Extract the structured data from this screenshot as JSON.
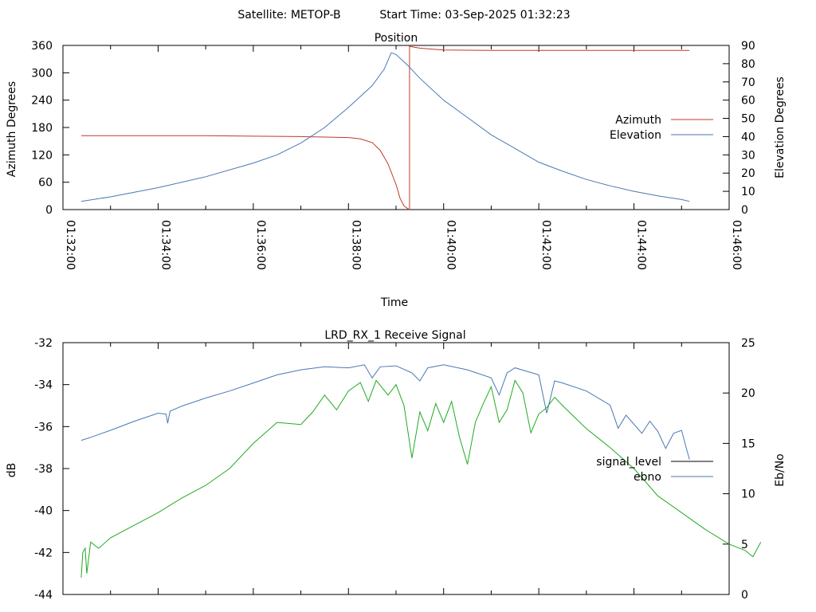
{
  "header": {
    "satellite": "Satellite: METOP-B",
    "start_time": "Start Time: 03-Sep-2025 01:32:23"
  },
  "chart_data": [
    {
      "type": "line",
      "title": "Position",
      "xlabel": "Time",
      "ylabel": "Azimuth Degrees",
      "y2label": "Elevation Degrees",
      "xlim": [
        "01:32:00",
        "01:46:00"
      ],
      "x_ticks": [
        "01:32:00",
        "01:34:00",
        "01:36:00",
        "01:38:00",
        "01:40:00",
        "01:42:00",
        "01:44:00",
        "01:46:00"
      ],
      "ylim": [
        0,
        360
      ],
      "y_ticks": [
        0,
        60,
        120,
        180,
        240,
        300,
        360
      ],
      "y2lim": [
        0,
        90
      ],
      "y2_ticks": [
        0,
        10,
        20,
        30,
        40,
        50,
        60,
        70,
        80,
        90
      ],
      "grid": false,
      "legend_position": "right",
      "series": [
        {
          "name": "Azimuth",
          "axis": "left",
          "color": "#c0392b",
          "points": [
            [
              "01:32:23",
              162
            ],
            [
              "01:33:00",
              162
            ],
            [
              "01:34:00",
              162
            ],
            [
              "01:35:00",
              162
            ],
            [
              "01:36:00",
              161
            ],
            [
              "01:37:00",
              160
            ],
            [
              "01:37:30",
              159
            ],
            [
              "01:38:00",
              158
            ],
            [
              "01:38:15",
              155
            ],
            [
              "01:38:30",
              147
            ],
            [
              "01:38:40",
              130
            ],
            [
              "01:38:50",
              100
            ],
            [
              "01:39:00",
              55
            ],
            [
              "01:39:05",
              25
            ],
            [
              "01:39:10",
              8
            ],
            [
              "01:39:15",
              2
            ],
            [
              "01:39:17",
              0
            ],
            [
              "01:39:17",
              358
            ],
            [
              "01:39:20",
              357
            ],
            [
              "01:39:30",
              354
            ],
            [
              "01:39:45",
              352
            ],
            [
              "01:40:00",
              350
            ],
            [
              "01:41:00",
              349
            ],
            [
              "01:42:00",
              349
            ],
            [
              "01:43:00",
              349
            ],
            [
              "01:44:00",
              349
            ],
            [
              "01:45:00",
              349
            ],
            [
              "01:45:10",
              349
            ]
          ]
        },
        {
          "name": "Elevation",
          "axis": "right",
          "color": "#4a77b4",
          "points": [
            [
              "01:32:23",
              4.5
            ],
            [
              "01:33:00",
              7
            ],
            [
              "01:34:00",
              12
            ],
            [
              "01:35:00",
              18
            ],
            [
              "01:36:00",
              25.5
            ],
            [
              "01:36:30",
              30
            ],
            [
              "01:37:00",
              36.5
            ],
            [
              "01:37:30",
              45
            ],
            [
              "01:38:00",
              56
            ],
            [
              "01:38:30",
              68
            ],
            [
              "01:38:45",
              77
            ],
            [
              "01:38:54",
              86
            ],
            [
              "01:39:00",
              85
            ],
            [
              "01:39:15",
              79
            ],
            [
              "01:39:30",
              72
            ],
            [
              "01:40:00",
              60
            ],
            [
              "01:40:30",
              50.5
            ],
            [
              "01:41:00",
              41
            ],
            [
              "01:41:30",
              33.5
            ],
            [
              "01:42:00",
              26
            ],
            [
              "01:42:30",
              21
            ],
            [
              "01:43:00",
              16.5
            ],
            [
              "01:43:30",
              13
            ],
            [
              "01:44:00",
              10
            ],
            [
              "01:44:30",
              7.5
            ],
            [
              "01:45:00",
              5.5
            ],
            [
              "01:45:10",
              4.5
            ]
          ]
        }
      ]
    },
    {
      "type": "line",
      "title": "LRD_RX_1 Receive Signal",
      "xlabel": "",
      "ylabel": "dB",
      "y2label": "Eb/No",
      "xlim": [
        "01:32:00",
        "01:46:00"
      ],
      "ylim": [
        -44,
        -32
      ],
      "y_ticks": [
        -44,
        -42,
        -40,
        -38,
        -36,
        -34,
        -32
      ],
      "y2lim": [
        0,
        25
      ],
      "y2_ticks": [
        0,
        5,
        10,
        15,
        20,
        25
      ],
      "grid": false,
      "legend_position": "right",
      "series": [
        {
          "name": "signal_level",
          "axis": "left",
          "color": "#000000",
          "points": []
        },
        {
          "name": "ebno",
          "axis": "right",
          "color": "#4a77b4",
          "points": [
            [
              "01:32:23",
              15.3
            ],
            [
              "01:32:35",
              15.6
            ],
            [
              "01:33:00",
              16.3
            ],
            [
              "01:33:30",
              17.2
            ],
            [
              "01:34:00",
              18.0
            ],
            [
              "01:34:10",
              17.9
            ],
            [
              "01:34:12",
              17.0
            ],
            [
              "01:34:15",
              18.2
            ],
            [
              "01:34:30",
              18.7
            ],
            [
              "01:35:00",
              19.5
            ],
            [
              "01:35:30",
              20.2
            ],
            [
              "01:36:00",
              21.0
            ],
            [
              "01:36:30",
              21.8
            ],
            [
              "01:37:00",
              22.3
            ],
            [
              "01:37:30",
              22.6
            ],
            [
              "01:38:00",
              22.5
            ],
            [
              "01:38:20",
              22.8
            ],
            [
              "01:38:30",
              21.5
            ],
            [
              "01:38:40",
              22.6
            ],
            [
              "01:39:00",
              22.7
            ],
            [
              "01:39:20",
              22.0
            ],
            [
              "01:39:30",
              21.2
            ],
            [
              "01:39:40",
              22.5
            ],
            [
              "01:40:00",
              22.8
            ],
            [
              "01:40:30",
              22.3
            ],
            [
              "01:41:00",
              21.5
            ],
            [
              "01:41:10",
              19.8
            ],
            [
              "01:41:20",
              22.0
            ],
            [
              "01:41:30",
              22.5
            ],
            [
              "01:42:00",
              21.8
            ],
            [
              "01:42:10",
              18.0
            ],
            [
              "01:42:20",
              21.2
            ],
            [
              "01:42:30",
              21.0
            ],
            [
              "01:43:00",
              20.2
            ],
            [
              "01:43:30",
              18.8
            ],
            [
              "01:43:40",
              16.5
            ],
            [
              "01:43:50",
              17.8
            ],
            [
              "01:44:10",
              16.0
            ],
            [
              "01:44:20",
              17.2
            ],
            [
              "01:44:30",
              16.2
            ],
            [
              "01:44:40",
              14.5
            ],
            [
              "01:44:50",
              16.0
            ],
            [
              "01:45:00",
              16.3
            ],
            [
              "01:45:05",
              14.8
            ],
            [
              "01:45:10",
              13.4
            ]
          ]
        },
        {
          "name": "",
          "axis": "left",
          "color": "#22aa22",
          "points": [
            [
              "01:32:23",
              -43.2
            ],
            [
              "01:32:25",
              -42.0
            ],
            [
              "01:32:28",
              -41.8
            ],
            [
              "01:32:30",
              -43.0
            ],
            [
              "01:32:35",
              -41.5
            ],
            [
              "01:32:45",
              -41.8
            ],
            [
              "01:33:00",
              -41.3
            ],
            [
              "01:33:30",
              -40.7
            ],
            [
              "01:34:00",
              -40.1
            ],
            [
              "01:34:30",
              -39.4
            ],
            [
              "01:35:00",
              -38.8
            ],
            [
              "01:35:30",
              -38.0
            ],
            [
              "01:36:00",
              -36.8
            ],
            [
              "01:36:30",
              -35.8
            ],
            [
              "01:37:00",
              -35.9
            ],
            [
              "01:37:15",
              -35.3
            ],
            [
              "01:37:30",
              -34.5
            ],
            [
              "01:37:45",
              -35.2
            ],
            [
              "01:38:00",
              -34.3
            ],
            [
              "01:38:15",
              -33.9
            ],
            [
              "01:38:25",
              -34.8
            ],
            [
              "01:38:35",
              -33.8
            ],
            [
              "01:38:50",
              -34.5
            ],
            [
              "01:39:00",
              -34.0
            ],
            [
              "01:39:10",
              -35.0
            ],
            [
              "01:39:20",
              -37.5
            ],
            [
              "01:39:30",
              -35.3
            ],
            [
              "01:39:40",
              -36.2
            ],
            [
              "01:39:50",
              -34.9
            ],
            [
              "01:40:00",
              -35.8
            ],
            [
              "01:40:10",
              -34.8
            ],
            [
              "01:40:20",
              -36.5
            ],
            [
              "01:40:30",
              -37.8
            ],
            [
              "01:40:40",
              -35.8
            ],
            [
              "01:40:50",
              -34.9
            ],
            [
              "01:41:00",
              -34.1
            ],
            [
              "01:41:10",
              -35.8
            ],
            [
              "01:41:20",
              -35.2
            ],
            [
              "01:41:30",
              -33.8
            ],
            [
              "01:41:40",
              -34.4
            ],
            [
              "01:41:50",
              -36.3
            ],
            [
              "01:42:00",
              -35.4
            ],
            [
              "01:42:10",
              -35.1
            ],
            [
              "01:42:20",
              -34.6
            ],
            [
              "01:42:30",
              -35.0
            ],
            [
              "01:43:00",
              -36.1
            ],
            [
              "01:43:30",
              -37.0
            ],
            [
              "01:44:00",
              -38.0
            ],
            [
              "01:44:30",
              -39.3
            ],
            [
              "01:45:00",
              -40.1
            ],
            [
              "01:45:30",
              -40.9
            ],
            [
              "01:46:00",
              -41.6
            ],
            [
              "01:46:20",
              -41.9
            ],
            [
              "01:46:30",
              -42.2
            ],
            [
              "01:46:40",
              -41.5
            ]
          ]
        }
      ]
    }
  ]
}
